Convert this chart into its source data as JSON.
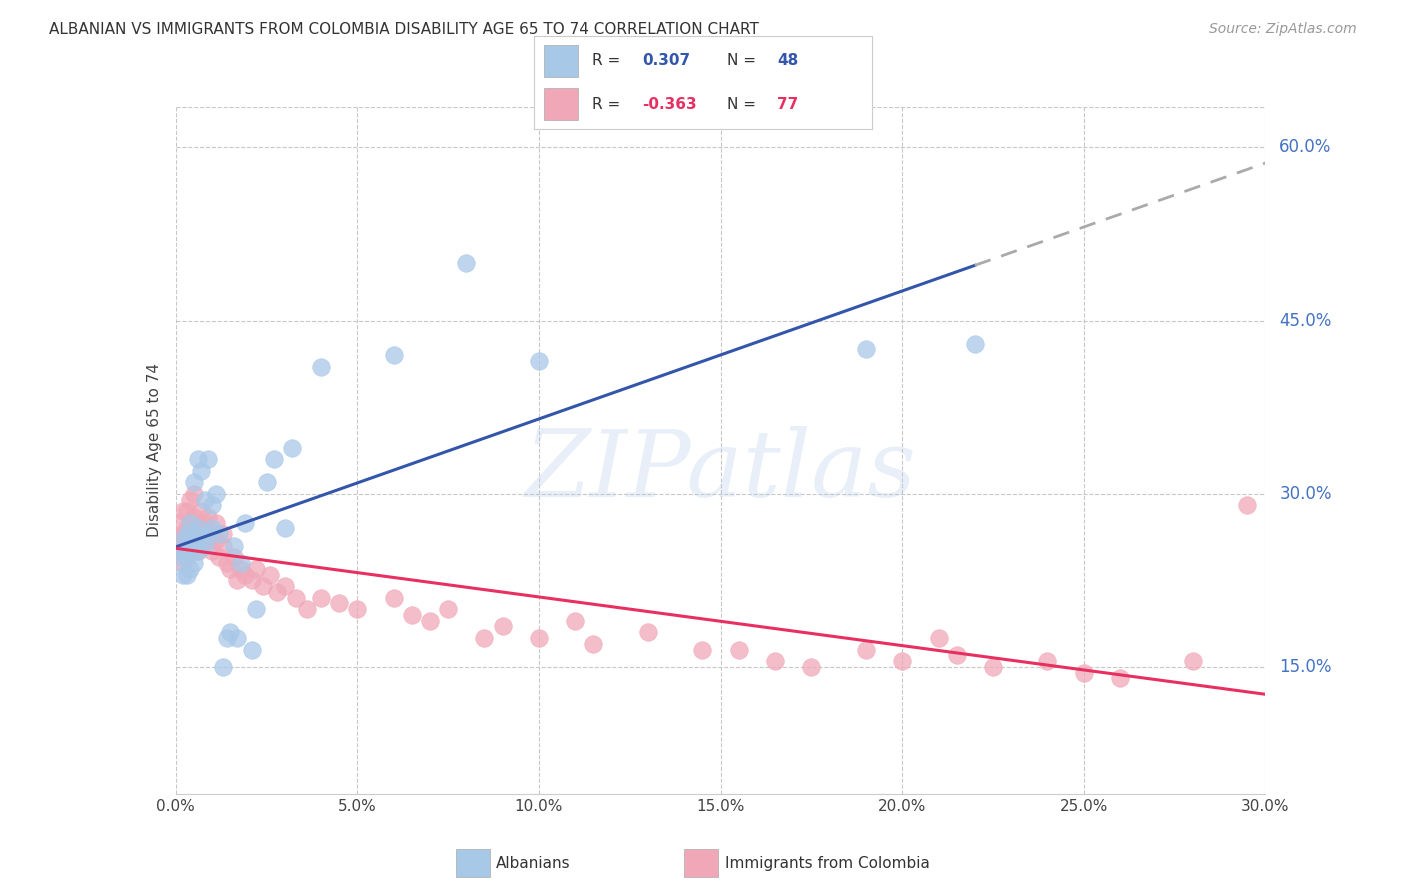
{
  "title": "ALBANIAN VS IMMIGRANTS FROM COLOMBIA DISABILITY AGE 65 TO 74 CORRELATION CHART",
  "source": "Source: ZipAtlas.com",
  "ylabel": "Disability Age 65 to 74",
  "ytick_values": [
    0.15,
    0.3,
    0.45,
    0.6
  ],
  "xlim": [
    0.0,
    0.3
  ],
  "ylim": [
    0.04,
    0.635
  ],
  "color_blue": "#A8C8E8",
  "color_pink": "#F0A8B8",
  "color_blue_line": "#3355AA",
  "color_pink_line": "#E83060",
  "color_blue_dark": "#4472C4",
  "color_axis_labels": "#4472C4",
  "watermark": "ZIPatlas",
  "gridline_color": "#C8C8C8",
  "background_color": "#FFFFFF",
  "albanians_x": [
    0.001,
    0.002,
    0.002,
    0.002,
    0.003,
    0.003,
    0.003,
    0.003,
    0.004,
    0.004,
    0.004,
    0.004,
    0.005,
    0.005,
    0.005,
    0.005,
    0.006,
    0.006,
    0.006,
    0.007,
    0.007,
    0.008,
    0.008,
    0.009,
    0.009,
    0.01,
    0.01,
    0.011,
    0.012,
    0.013,
    0.014,
    0.015,
    0.016,
    0.017,
    0.018,
    0.019,
    0.021,
    0.022,
    0.025,
    0.027,
    0.03,
    0.032,
    0.04,
    0.06,
    0.08,
    0.1,
    0.19,
    0.22
  ],
  "albanians_y": [
    0.245,
    0.23,
    0.25,
    0.26,
    0.23,
    0.245,
    0.255,
    0.265,
    0.235,
    0.25,
    0.26,
    0.275,
    0.24,
    0.255,
    0.265,
    0.31,
    0.25,
    0.27,
    0.33,
    0.26,
    0.32,
    0.255,
    0.295,
    0.265,
    0.33,
    0.27,
    0.29,
    0.3,
    0.265,
    0.15,
    0.175,
    0.18,
    0.255,
    0.175,
    0.24,
    0.275,
    0.165,
    0.2,
    0.31,
    0.33,
    0.27,
    0.34,
    0.41,
    0.42,
    0.5,
    0.415,
    0.425,
    0.43
  ],
  "colombia_x": [
    0.001,
    0.001,
    0.001,
    0.002,
    0.002,
    0.002,
    0.002,
    0.003,
    0.003,
    0.003,
    0.003,
    0.004,
    0.004,
    0.004,
    0.004,
    0.005,
    0.005,
    0.005,
    0.005,
    0.006,
    0.006,
    0.006,
    0.007,
    0.007,
    0.007,
    0.008,
    0.008,
    0.009,
    0.009,
    0.01,
    0.01,
    0.011,
    0.011,
    0.012,
    0.013,
    0.013,
    0.014,
    0.015,
    0.016,
    0.017,
    0.018,
    0.019,
    0.021,
    0.022,
    0.024,
    0.026,
    0.028,
    0.03,
    0.033,
    0.036,
    0.04,
    0.045,
    0.05,
    0.06,
    0.065,
    0.07,
    0.075,
    0.085,
    0.09,
    0.1,
    0.11,
    0.115,
    0.13,
    0.145,
    0.155,
    0.165,
    0.175,
    0.19,
    0.2,
    0.21,
    0.215,
    0.225,
    0.24,
    0.25,
    0.26,
    0.28,
    0.295
  ],
  "colombia_y": [
    0.25,
    0.26,
    0.275,
    0.24,
    0.255,
    0.265,
    0.285,
    0.245,
    0.26,
    0.27,
    0.285,
    0.25,
    0.26,
    0.275,
    0.295,
    0.255,
    0.265,
    0.28,
    0.3,
    0.25,
    0.265,
    0.275,
    0.255,
    0.27,
    0.285,
    0.26,
    0.275,
    0.26,
    0.28,
    0.25,
    0.265,
    0.26,
    0.275,
    0.245,
    0.255,
    0.265,
    0.24,
    0.235,
    0.245,
    0.225,
    0.235,
    0.23,
    0.225,
    0.235,
    0.22,
    0.23,
    0.215,
    0.22,
    0.21,
    0.2,
    0.21,
    0.205,
    0.2,
    0.21,
    0.195,
    0.19,
    0.2,
    0.175,
    0.185,
    0.175,
    0.19,
    0.17,
    0.18,
    0.165,
    0.165,
    0.155,
    0.15,
    0.165,
    0.155,
    0.175,
    0.16,
    0.15,
    0.155,
    0.145,
    0.14,
    0.155,
    0.29
  ]
}
